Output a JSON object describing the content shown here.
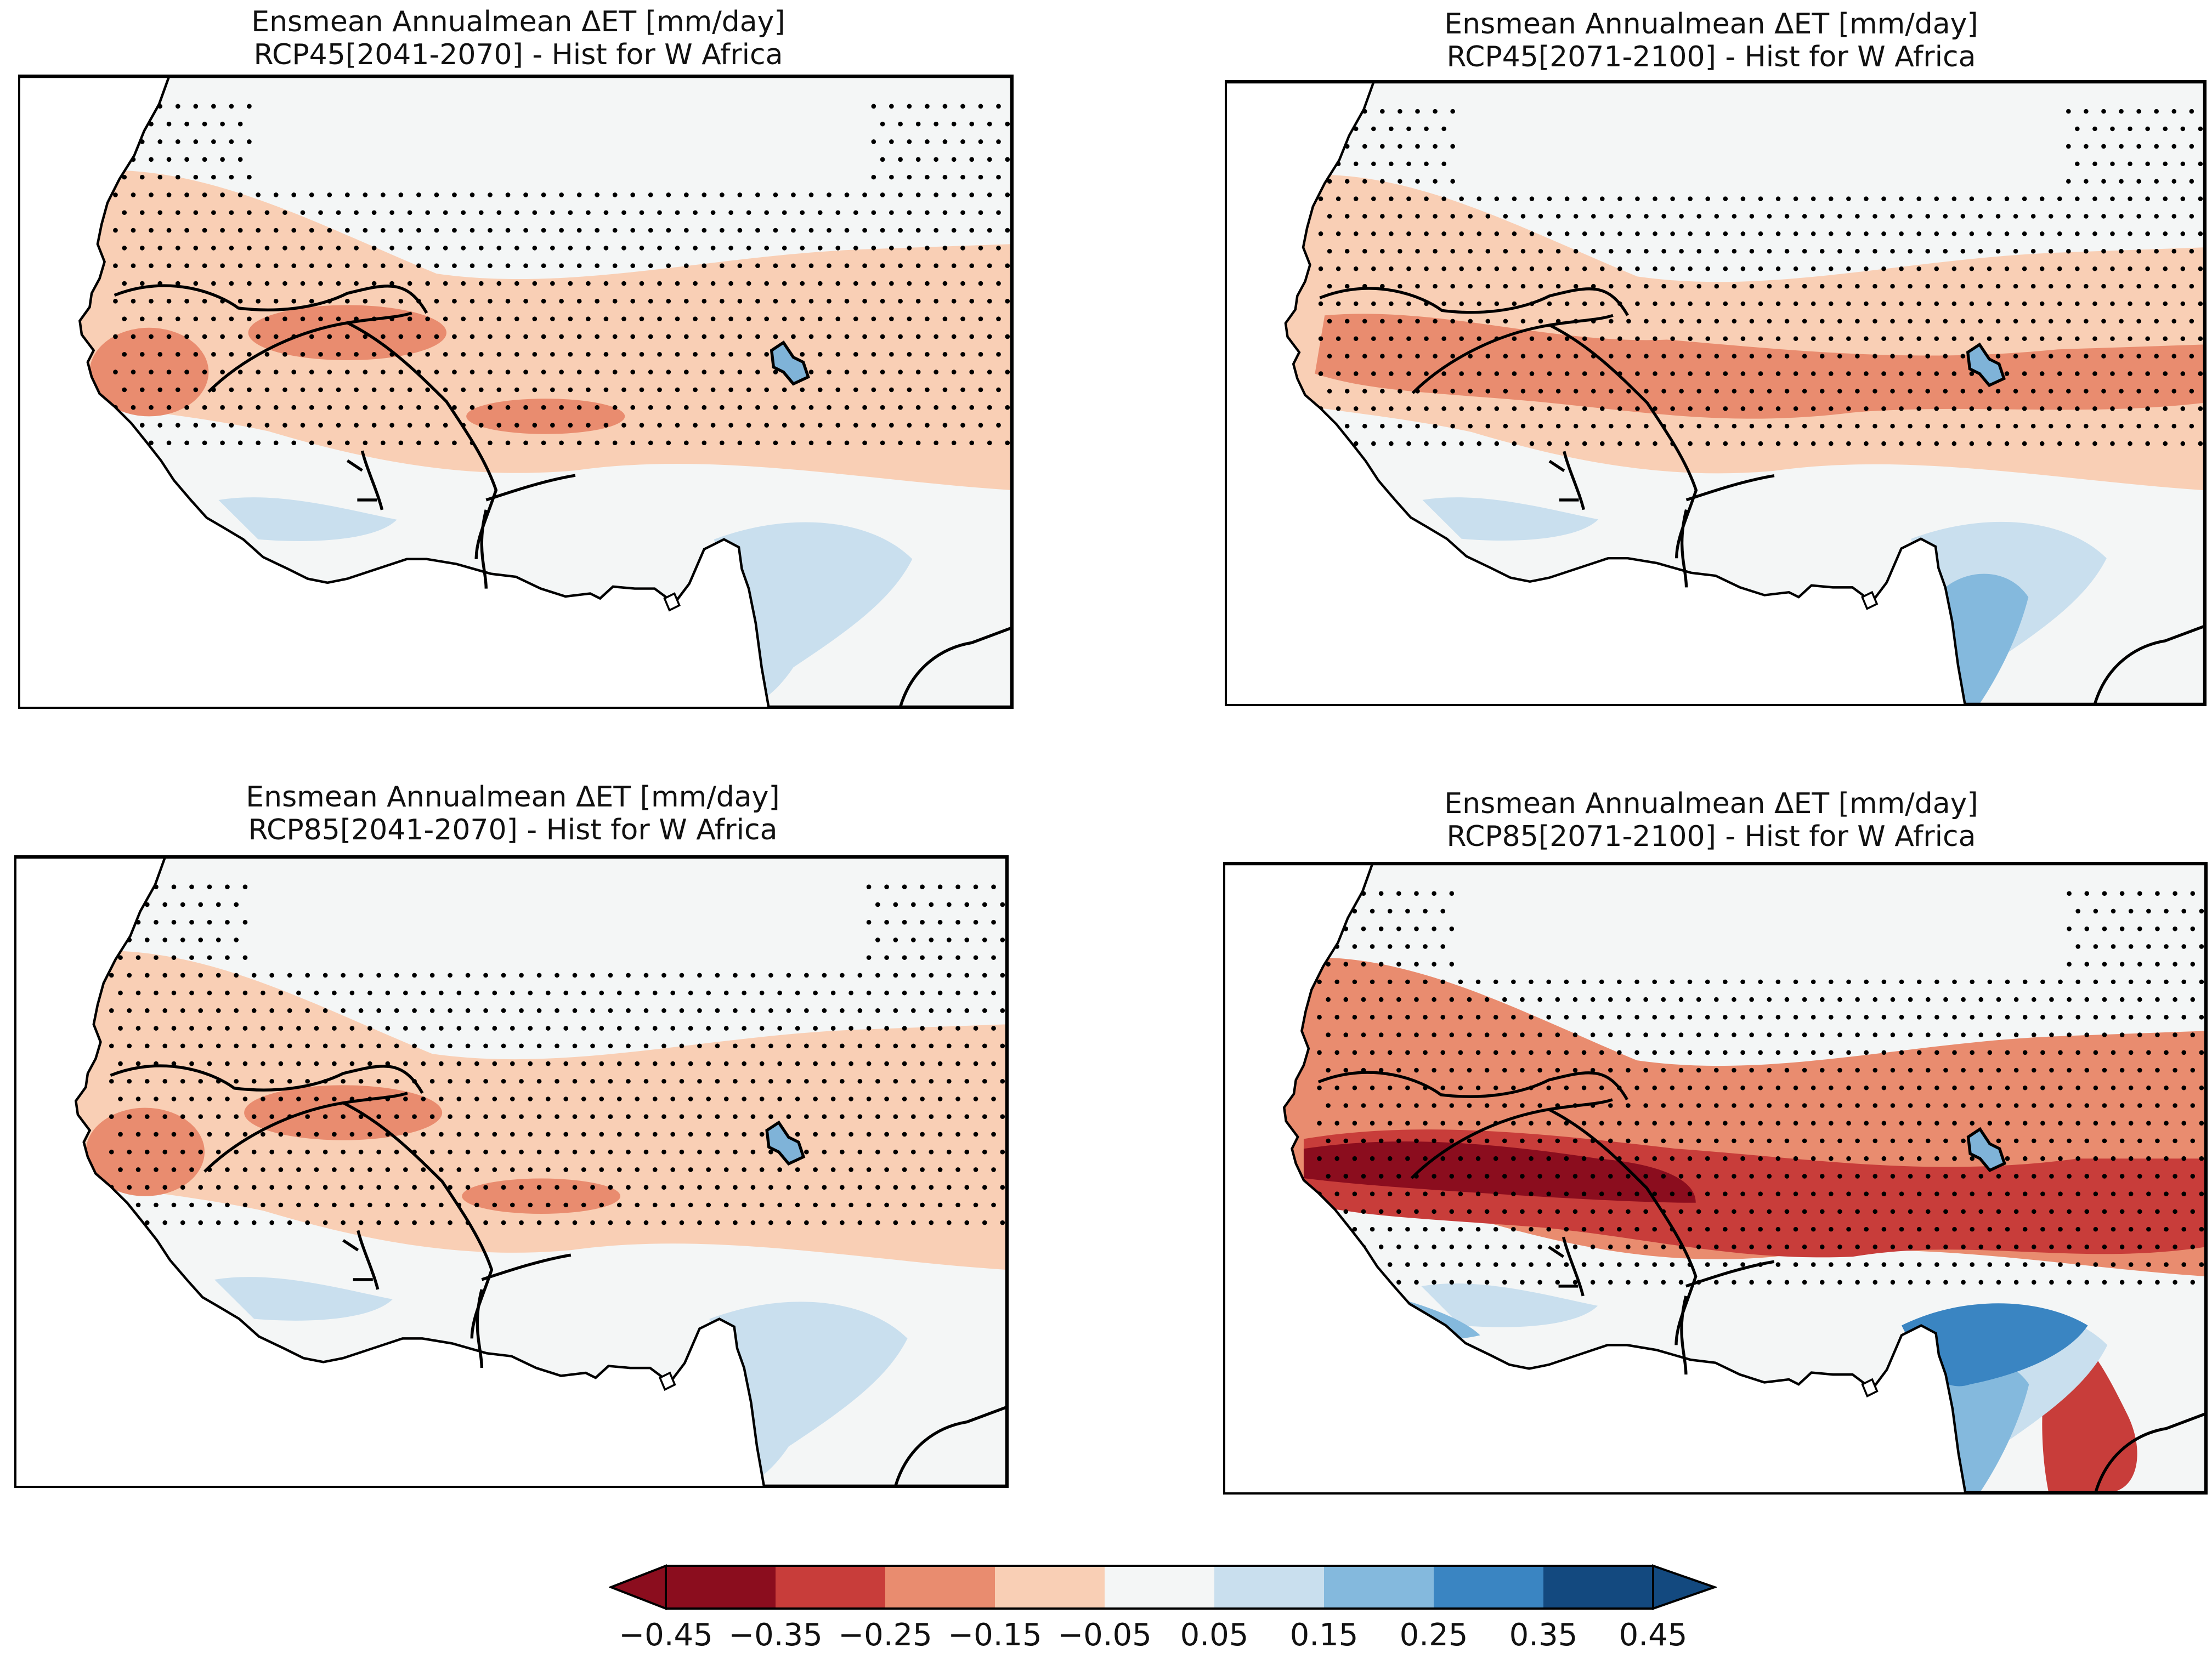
{
  "figure": {
    "variable": "Ensmean  Annualmean ΔET [mm/day]",
    "region_suffix": "- Hist for W Africa"
  },
  "panels": [
    {
      "title_line1": "Ensmean  Annualmean ΔET [mm/day]",
      "title_line2": "RCP45[2041-2070] - Hist for W Africa",
      "scenario": "RCP45",
      "period": "2041-2070",
      "intensity": 1
    },
    {
      "title_line1": "Ensmean  Annualmean ΔET [mm/day]",
      "title_line2": "RCP45[2071-2100] - Hist for W Africa",
      "scenario": "RCP45",
      "period": "2071-2100",
      "intensity": 2
    },
    {
      "title_line1": "Ensmean  Annualmean ΔET [mm/day]",
      "title_line2": "RCP85[2041-2070] - Hist for W Africa",
      "scenario": "RCP85",
      "period": "2041-2070",
      "intensity": 1
    },
    {
      "title_line1": "Ensmean  Annualmean ΔET [mm/day]",
      "title_line2": "RCP85[2071-2100] - Hist for W Africa",
      "scenario": "RCP85",
      "period": "2071-2100",
      "intensity": 4
    }
  ],
  "colorbar": {
    "levels": [
      -0.45,
      -0.35,
      -0.25,
      -0.15,
      -0.05,
      0.05,
      0.15,
      0.25,
      0.35,
      0.45
    ],
    "tick_labels": [
      "−0.45",
      "−0.35",
      "−0.25",
      "−0.15",
      "−0.05",
      "0.05",
      "0.15",
      "0.25",
      "0.35",
      "0.45"
    ],
    "colors": [
      "#8b0d1e",
      "#c83d3a",
      "#e98c6f",
      "#f9cfb5",
      "#f4f6f6",
      "#c9dfee",
      "#84b9dd",
      "#3a85c2",
      "#13497f"
    ],
    "extend": "both"
  },
  "colors": {
    "land": "#f4f6f6",
    "coast": "#000000",
    "stipple": "#000000"
  }
}
